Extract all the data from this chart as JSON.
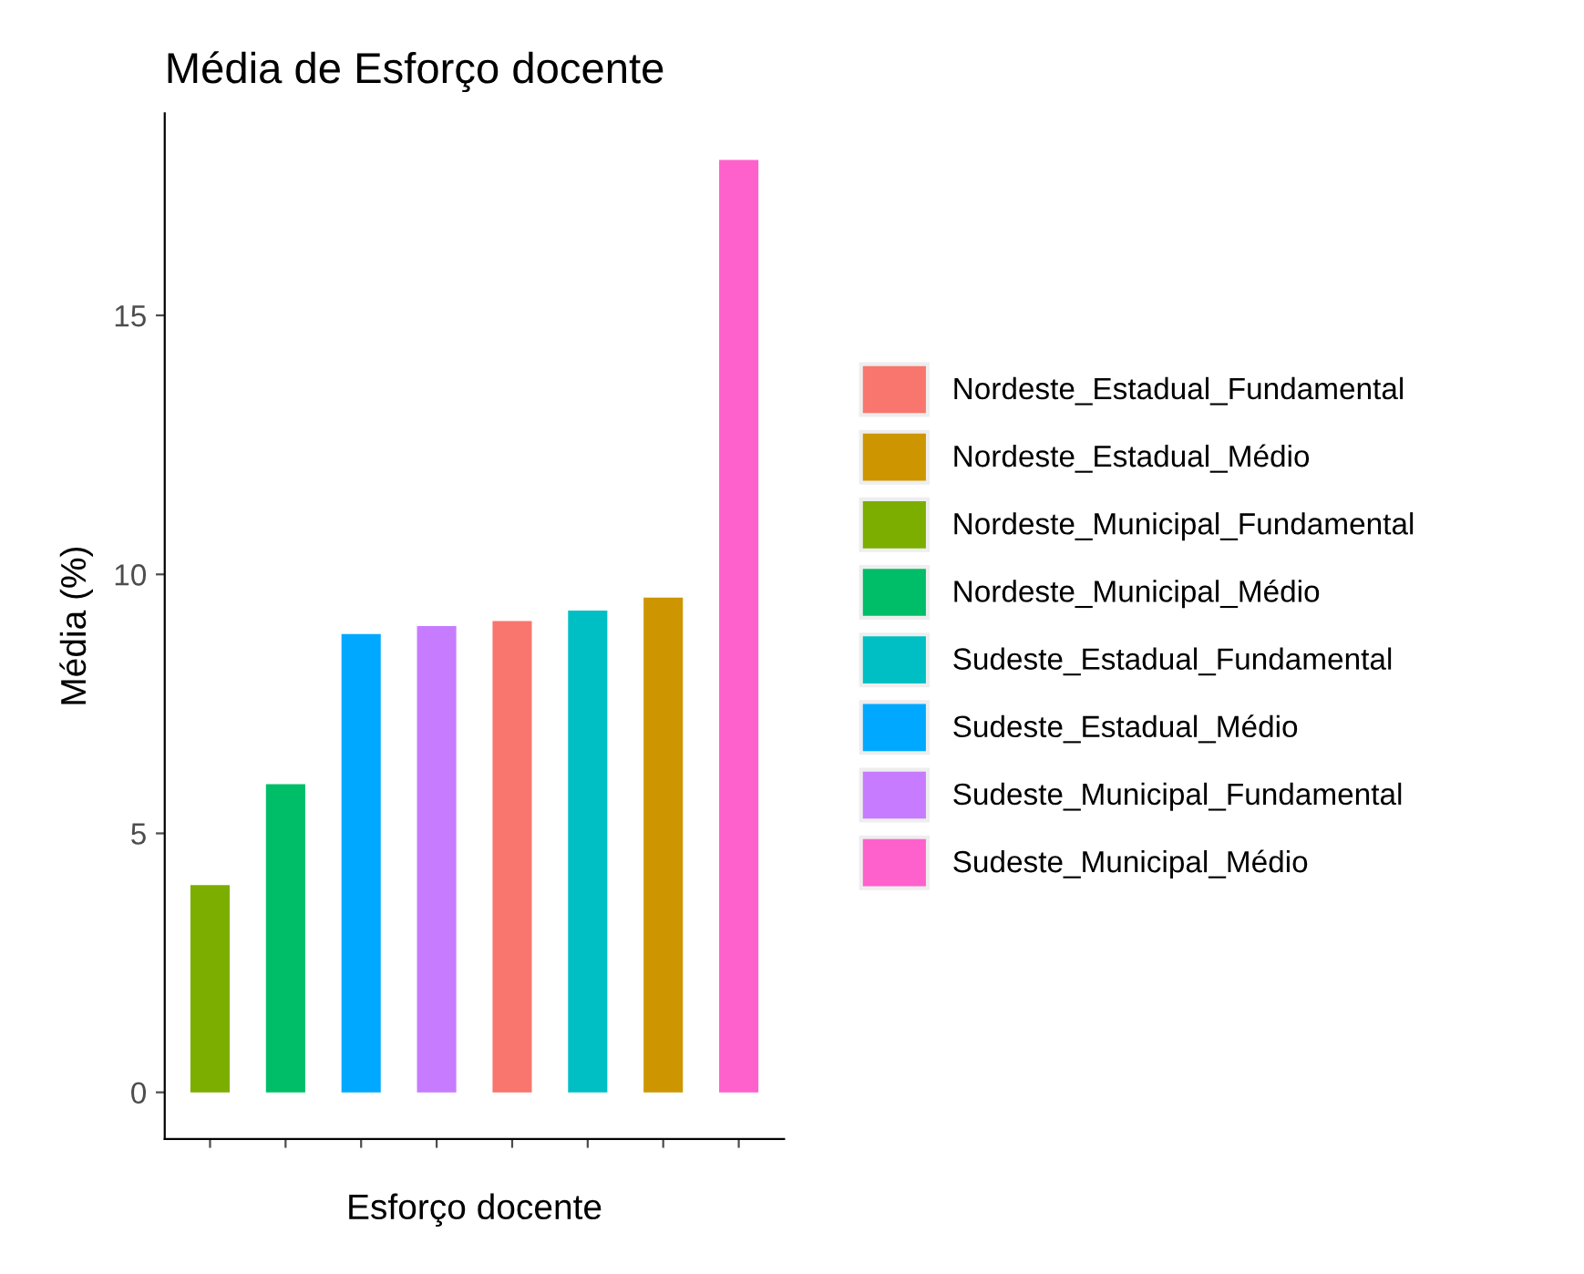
{
  "chart_data": {
    "type": "bar",
    "title": "Média de Esforço docente",
    "xlabel": "Esforço docente",
    "ylabel": "Média (%)",
    "categories": [
      null,
      null,
      null,
      null,
      null,
      null,
      null,
      null
    ],
    "series": [
      {
        "name": "Nordeste_Estadual_Fundamental",
        "color": "#f8766d",
        "values": [
          null,
          null,
          null,
          null,
          9.1,
          null,
          null,
          null
        ]
      },
      {
        "name": "Nordeste_Estadual_Médio",
        "color": "#cd9600",
        "values": [
          null,
          null,
          null,
          null,
          null,
          null,
          9.55,
          null
        ]
      },
      {
        "name": "Nordeste_Municipal_Fundamental",
        "color": "#7cae00",
        "values": [
          4.0,
          null,
          null,
          null,
          null,
          null,
          null,
          null
        ]
      },
      {
        "name": "Nordeste_Municipal_Médio",
        "color": "#00be67",
        "values": [
          null,
          5.95,
          null,
          null,
          null,
          null,
          null,
          null
        ]
      },
      {
        "name": "Sudeste_Estadual_Fundamental",
        "color": "#00bfc4",
        "values": [
          null,
          null,
          null,
          null,
          null,
          9.3,
          null,
          null
        ]
      },
      {
        "name": "Sudeste_Estadual_Médio",
        "color": "#00a9ff",
        "values": [
          null,
          null,
          8.85,
          null,
          null,
          null,
          null,
          null
        ]
      },
      {
        "name": "Sudeste_Municipal_Fundamental",
        "color": "#c77cff",
        "values": [
          null,
          null,
          null,
          9.0,
          null,
          null,
          null,
          null
        ]
      },
      {
        "name": "Sudeste_Municipal_Médio",
        "color": "#ff61cc",
        "values": [
          null,
          null,
          null,
          null,
          null,
          null,
          null,
          18.0
        ]
      }
    ],
    "ylim": [
      -0.9,
      18.9
    ],
    "yticks": [
      0,
      5,
      10,
      15
    ],
    "grid": false,
    "legend": "right",
    "tick_labels": "y"
  }
}
